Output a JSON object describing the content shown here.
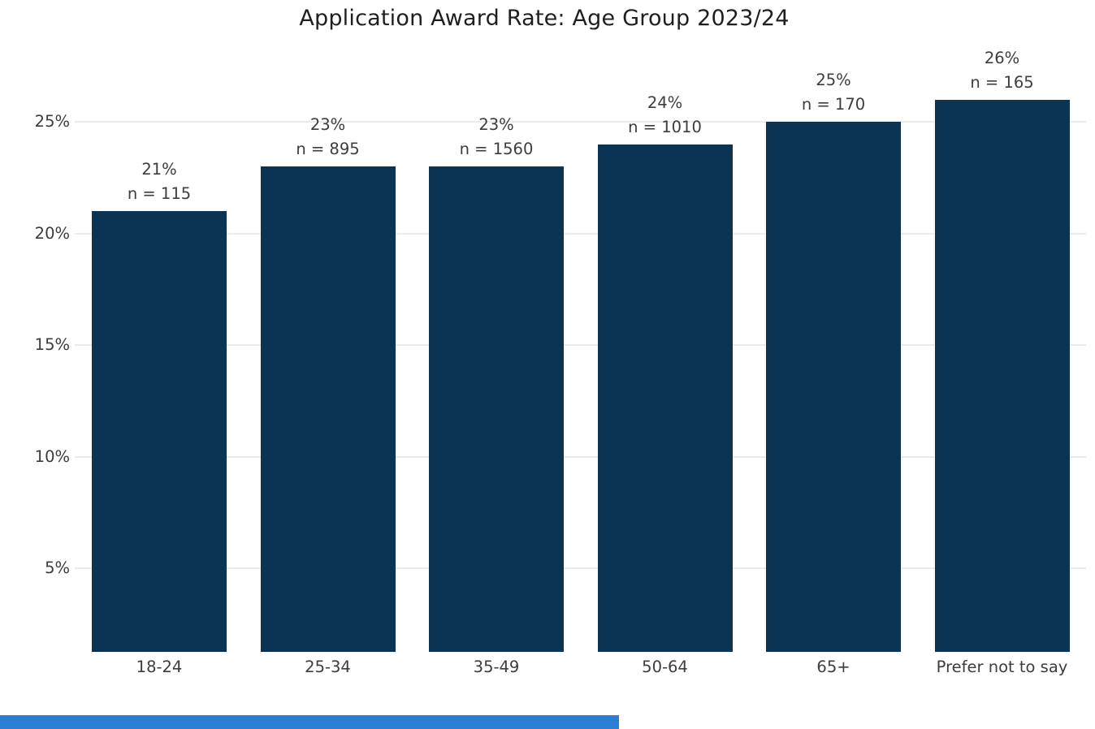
{
  "title": "Application Award Rate: Age Group 2023/24",
  "chart_data": {
    "type": "bar",
    "title": "Application Award Rate: Age Group 2023/24",
    "categories": [
      "18-24",
      "25-34",
      "35-49",
      "50-64",
      "65+",
      "Prefer not to say"
    ],
    "values": [
      21,
      23,
      23,
      24,
      25,
      26
    ],
    "sample_sizes": [
      115,
      895,
      1560,
      1010,
      170,
      165
    ],
    "value_labels": [
      "21%",
      "23%",
      "23%",
      "24%",
      "25%",
      "26%"
    ],
    "n_labels": [
      "n = 115",
      "n = 895",
      "n = 1560",
      "n = 1010",
      "n = 170",
      "n = 165"
    ],
    "xlabel": "",
    "ylabel": "",
    "y_tick_labels": [
      "5%",
      "10%",
      "15%",
      "20%",
      "25%"
    ],
    "y_tick_values": [
      5,
      10,
      15,
      20,
      25
    ],
    "ylim": [
      0,
      27.5
    ],
    "grid": "horizontal",
    "legend": "none",
    "bar_color": "#0a3354",
    "gridline_color": "#ebebeb",
    "label_color": "#3d3d3d"
  },
  "footer": {
    "accent_color": "#2b7cd3"
  }
}
